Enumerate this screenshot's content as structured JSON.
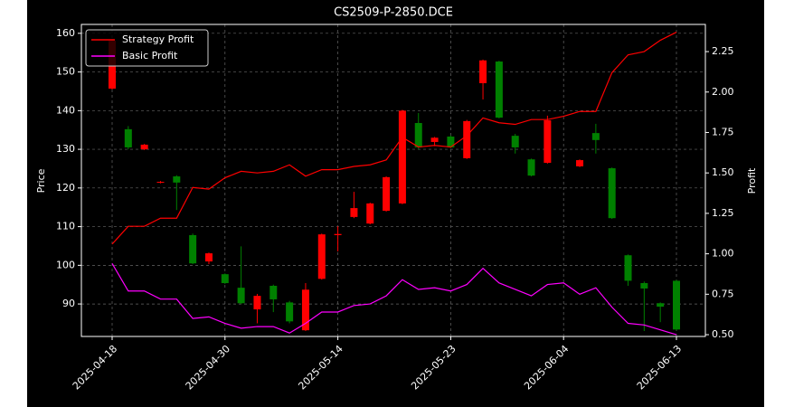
{
  "chart_data": {
    "type": "candlestick",
    "title": "CS2509-P-2850.DCE",
    "ylabel": "Price",
    "y2label": "Profit",
    "categories": [
      "2025-04-18",
      null,
      null,
      null,
      null,
      null,
      null,
      "2025-04-30",
      null,
      null,
      null,
      null,
      null,
      null,
      "2025-05-14",
      null,
      null,
      null,
      null,
      null,
      null,
      "2025-05-23",
      null,
      null,
      null,
      null,
      null,
      null,
      "2025-06-04",
      null,
      null,
      null,
      null,
      null,
      null,
      "2025-06-13"
    ],
    "open": [
      145.7,
      135.2,
      130.0,
      121.4,
      123.0,
      107.8,
      101.0,
      97.7,
      94.2,
      88.6,
      94.7,
      90.4,
      83.2,
      96.5,
      107.8,
      112.5,
      110.8,
      114.1,
      116.0,
      136.8,
      131.9,
      133.3,
      127.7,
      147.1,
      152.7,
      133.5,
      127.4,
      126.5,
      null,
      125.6,
      134.2,
      125.1,
      102.6,
      95.4,
      90.2,
      96.0
    ],
    "high": [
      158.5,
      136.0,
      131.4,
      121.8,
      123.3,
      108.2,
      103.3,
      97.9,
      104.9,
      92.6,
      95.0,
      90.8,
      95.4,
      108.2,
      110.1,
      119.0,
      116.2,
      123.0,
      140.2,
      139.4,
      133.2,
      133.6,
      137.6,
      153.2,
      152.9,
      134.0,
      127.6,
      138.7,
      null,
      127.4,
      136.6,
      125.3,
      102.8,
      95.8,
      90.4,
      96.2
    ],
    "low": [
      145.5,
      130.0,
      129.8,
      121.2,
      114.3,
      100.3,
      100.3,
      95.2,
      90.0,
      85.0,
      87.9,
      85.0,
      83.0,
      96.3,
      103.6,
      112.2,
      110.6,
      113.9,
      115.8,
      130.0,
      130.8,
      130.3,
      127.5,
      142.9,
      138.0,
      128.9,
      123.0,
      126.3,
      null,
      125.4,
      128.9,
      112.0,
      94.7,
      83.0,
      85.3,
      83.2
    ],
    "close": [
      158.1,
      130.5,
      131.2,
      121.6,
      121.4,
      100.5,
      103.1,
      95.4,
      90.2,
      92.1,
      91.2,
      85.5,
      93.7,
      108.0,
      108.1,
      114.8,
      116.0,
      122.8,
      140.0,
      130.5,
      133.0,
      130.5,
      137.3,
      153.0,
      138.2,
      130.5,
      123.2,
      137.5,
      null,
      127.2,
      132.4,
      112.2,
      96.0,
      94.0,
      89.3,
      83.4
    ],
    "up_color": "#ff0000",
    "down_color": "#008000",
    "series": [
      {
        "name": "Strategy Profit",
        "color": "#ff0000",
        "axis": "y2",
        "values": [
          1.06,
          1.17,
          1.17,
          1.22,
          1.22,
          1.41,
          1.4,
          1.47,
          1.51,
          1.5,
          1.51,
          1.55,
          1.48,
          1.52,
          1.52,
          1.54,
          1.55,
          1.58,
          1.72,
          1.66,
          1.67,
          1.66,
          1.73,
          1.84,
          1.81,
          1.8,
          1.83,
          1.83,
          1.85,
          1.88,
          1.88,
          2.12,
          2.23,
          2.25,
          2.32,
          2.37
        ]
      },
      {
        "name": "Basic Profit",
        "color": "#ff00ff",
        "axis": "y2",
        "values": [
          0.94,
          0.77,
          0.77,
          0.72,
          0.72,
          0.6,
          0.61,
          0.57,
          0.54,
          0.55,
          0.55,
          0.51,
          0.57,
          0.64,
          0.64,
          0.68,
          0.69,
          0.74,
          0.84,
          0.78,
          0.79,
          0.77,
          0.81,
          0.91,
          0.82,
          0.78,
          0.74,
          0.81,
          0.82,
          0.75,
          0.79,
          0.67,
          0.57,
          0.56,
          0.53,
          0.5
        ]
      }
    ],
    "ylim": [
      81.6,
      162.3
    ],
    "yticks": [
      90,
      100,
      110,
      120,
      130,
      140,
      150,
      160
    ],
    "y2lim": [
      0.489,
      2.418
    ],
    "y2ticks": [
      {
        "value": 0.5,
        "label": "0.50"
      },
      0.75,
      {
        "value": 1.0,
        "label": "1.00"
      },
      1.25,
      {
        "value": 1.5,
        "label": "1.50"
      },
      1.75,
      {
        "value": 2.0,
        "label": "2.00"
      },
      2.25
    ],
    "grid": true,
    "legend": "upper left"
  }
}
